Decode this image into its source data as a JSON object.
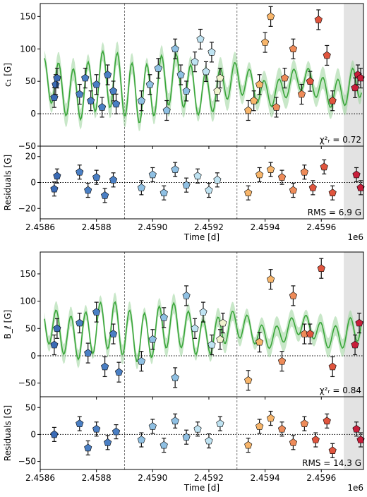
{
  "colors": {
    "model_line": "#3aa63a",
    "model_band": "#9bd49b",
    "forecast_shade": "#e3e3e3",
    "epochs": [
      "#3b6bb5",
      "#4a7fc4",
      "#8fc0e3",
      "#bfe3f2",
      "#f1f3cf",
      "#f7b56a",
      "#ee8b59",
      "#e0553e",
      "#c81e3a"
    ]
  },
  "chart_data": [
    {
      "panel": "top-main",
      "type": "scatter",
      "ylabel": "c₁ [G]",
      "ylim": [
        -50,
        170
      ],
      "xlim": [
        2458600,
        2459750
      ],
      "yticks": [
        "−50",
        "0",
        "50",
        "100",
        "150"
      ],
      "annotation": "χ²ᵣ = 0.72",
      "epoch_boundaries": [
        2458900,
        2459300
      ],
      "forecast_start": 2459680,
      "series": [
        {
          "epoch": 0,
          "x": [
            2458650,
            2458655,
            2458660
          ],
          "y": [
            25,
            45,
            55
          ]
        },
        {
          "epoch": 1,
          "x": [
            2458740,
            2458760,
            2458780,
            2458800,
            2458820,
            2458840,
            2458860,
            2458870
          ],
          "y": [
            30,
            55,
            20,
            45,
            10,
            60,
            35,
            15
          ]
        },
        {
          "epoch": 2,
          "x": [
            2458960,
            2458990,
            2459020,
            2459050,
            2459080,
            2459100,
            2459120
          ],
          "y": [
            20,
            45,
            70,
            5,
            100,
            60,
            35
          ]
        },
        {
          "epoch": 3,
          "x": [
            2459150,
            2459170,
            2459190,
            2459210
          ],
          "y": [
            80,
            115,
            65,
            95
          ]
        },
        {
          "epoch": 4,
          "x": [
            2459230,
            2459240
          ],
          "y": [
            35,
            55
          ]
        },
        {
          "epoch": 5,
          "x": [
            2459340,
            2459360,
            2459380,
            2459400,
            2459420
          ],
          "y": [
            5,
            20,
            45,
            110,
            150
          ]
        },
        {
          "epoch": 6,
          "x": [
            2459440,
            2459470,
            2459500,
            2459530
          ],
          "y": [
            10,
            55,
            100,
            30
          ]
        },
        {
          "epoch": 7,
          "x": [
            2459560,
            2459590,
            2459620,
            2459640
          ],
          "y": [
            50,
            145,
            90,
            20
          ]
        },
        {
          "epoch": 8,
          "x": [
            2459720,
            2459730,
            2459740
          ],
          "y": [
            40,
            60,
            55
          ]
        }
      ]
    },
    {
      "panel": "top-residuals",
      "type": "scatter",
      "ylabel": "Residuals [G]",
      "ylim": [
        -28,
        28
      ],
      "yticks": [
        "−20",
        "0",
        "20"
      ],
      "xlabel": "Time [d]",
      "xticks": [
        "2.4586",
        "2.4588",
        "2.4590",
        "2.4592",
        "2.4594",
        "2.4596"
      ],
      "offset_label": "1e6",
      "annotation": "RMS = 6.9 G",
      "series": [
        {
          "epoch": 0,
          "x": [
            2458650,
            2458660
          ],
          "y": [
            -5,
            5
          ]
        },
        {
          "epoch": 1,
          "x": [
            2458740,
            2458770,
            2458800,
            2458830,
            2458860
          ],
          "y": [
            8,
            -6,
            4,
            -10,
            2
          ]
        },
        {
          "epoch": 2,
          "x": [
            2458960,
            2459000,
            2459040,
            2459080,
            2459120
          ],
          "y": [
            -4,
            6,
            -8,
            10,
            -2
          ]
        },
        {
          "epoch": 3,
          "x": [
            2459160,
            2459200,
            2459230
          ],
          "y": [
            5,
            -6,
            2
          ]
        },
        {
          "epoch": 5,
          "x": [
            2459340,
            2459380,
            2459420
          ],
          "y": [
            -8,
            6,
            10
          ]
        },
        {
          "epoch": 6,
          "x": [
            2459460,
            2459500,
            2459540
          ],
          "y": [
            4,
            -6,
            8
          ]
        },
        {
          "epoch": 7,
          "x": [
            2459570,
            2459610,
            2459640
          ],
          "y": [
            -4,
            12,
            -8
          ]
        },
        {
          "epoch": 8,
          "x": [
            2459725,
            2459740
          ],
          "y": [
            6,
            -4
          ]
        }
      ]
    },
    {
      "panel": "bottom-main",
      "type": "scatter",
      "ylabel": "B_ℓ [G]",
      "ylim": [
        -75,
        190
      ],
      "yticks": [
        "−50",
        "0",
        "50",
        "100",
        "150"
      ],
      "annotation": "χ²ᵣ = 0.84",
      "series": [
        {
          "epoch": 0,
          "x": [
            2458650,
            2458660
          ],
          "y": [
            20,
            50
          ]
        },
        {
          "epoch": 1,
          "x": [
            2458740,
            2458770,
            2458800,
            2458830,
            2458860,
            2458880
          ],
          "y": [
            60,
            5,
            80,
            -20,
            40,
            -30
          ]
        },
        {
          "epoch": 2,
          "x": [
            2458960,
            2459000,
            2459040,
            2459080,
            2459120
          ],
          "y": [
            -10,
            30,
            70,
            -40,
            110
          ]
        },
        {
          "epoch": 3,
          "x": [
            2459150,
            2459180,
            2459210
          ],
          "y": [
            50,
            80,
            20
          ]
        },
        {
          "epoch": 4,
          "x": [
            2459240,
            2459250
          ],
          "y": [
            30,
            60
          ]
        },
        {
          "epoch": 5,
          "x": [
            2459340,
            2459380,
            2459420
          ],
          "y": [
            -45,
            25,
            140
          ]
        },
        {
          "epoch": 6,
          "x": [
            2459460,
            2459500,
            2459540
          ],
          "y": [
            -10,
            110,
            40
          ]
        },
        {
          "epoch": 7,
          "x": [
            2459560,
            2459600,
            2459640
          ],
          "y": [
            40,
            160,
            -20
          ]
        },
        {
          "epoch": 8,
          "x": [
            2459720,
            2459735
          ],
          "y": [
            20,
            60
          ]
        }
      ]
    },
    {
      "panel": "bottom-residuals",
      "type": "scatter",
      "ylabel": "Residuals [G]",
      "ylim": [
        -65,
        70
      ],
      "yticks": [
        "−50",
        "0",
        "50"
      ],
      "xlabel": "Time [d]",
      "xticks": [
        "2.4586",
        "2.4588",
        "2.4590",
        "2.4592",
        "2.4594",
        "2.4596"
      ],
      "offset_label": "1e6",
      "annotation": "RMS = 14.3 G",
      "series": [
        {
          "epoch": 0,
          "x": [
            2458650
          ],
          "y": [
            0
          ]
        },
        {
          "epoch": 1,
          "x": [
            2458740,
            2458770,
            2458800,
            2458840,
            2458870
          ],
          "y": [
            20,
            -25,
            10,
            -15,
            5
          ]
        },
        {
          "epoch": 2,
          "x": [
            2458960,
            2459000,
            2459040,
            2459080,
            2459120
          ],
          "y": [
            -10,
            15,
            -20,
            25,
            -5
          ]
        },
        {
          "epoch": 3,
          "x": [
            2459160,
            2459200,
            2459240
          ],
          "y": [
            10,
            -12,
            20
          ]
        },
        {
          "epoch": 5,
          "x": [
            2459340,
            2459380,
            2459420
          ],
          "y": [
            -20,
            15,
            30
          ]
        },
        {
          "epoch": 6,
          "x": [
            2459460,
            2459500,
            2459540
          ],
          "y": [
            10,
            -15,
            20
          ]
        },
        {
          "epoch": 7,
          "x": [
            2459580,
            2459620,
            2459640
          ],
          "y": [
            -10,
            25,
            -30
          ]
        },
        {
          "epoch": 8,
          "x": [
            2459725,
            2459740
          ],
          "y": [
            10,
            -10
          ]
        }
      ]
    }
  ]
}
